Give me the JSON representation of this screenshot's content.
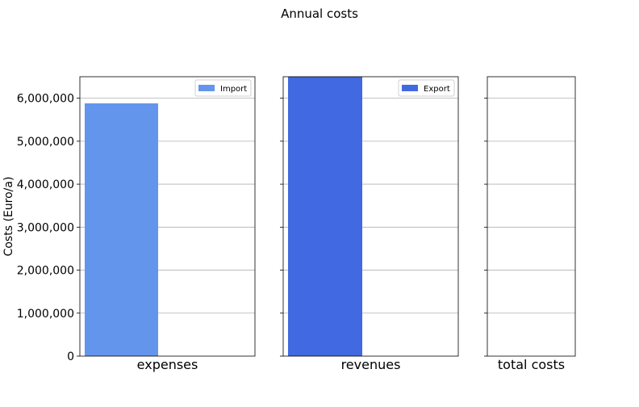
{
  "chart_data": {
    "type": "bar",
    "title": "Annual costs",
    "ylabel": "Costs (Euro/a)",
    "ylim": [
      0,
      6500000
    ],
    "yticks": [
      0,
      1000000,
      2000000,
      3000000,
      4000000,
      5000000,
      6000000
    ],
    "ytick_labels": [
      "0",
      "1,000,000",
      "2,000,000",
      "3,000,000",
      "4,000,000",
      "5,000,000",
      "6,000,000"
    ],
    "grid": "horizontal",
    "legend_placement": "top-right",
    "panels": [
      {
        "category": "expenses",
        "series": [
          {
            "name": "Import",
            "value": 5880000,
            "color": "#6495ED"
          }
        ]
      },
      {
        "category": "revenues",
        "series": [
          {
            "name": "Export",
            "value": 6500000,
            "color": "#4169E1"
          }
        ]
      },
      {
        "category": "total costs",
        "series": []
      }
    ]
  }
}
